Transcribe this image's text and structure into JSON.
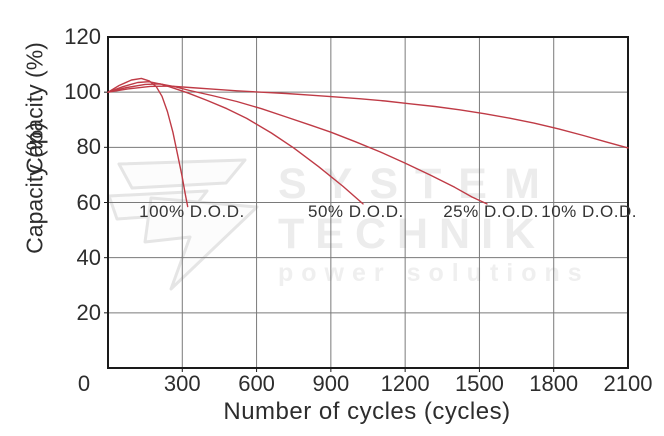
{
  "watermark": {
    "logo": "lightning-bolt",
    "line1": "SYSTEM",
    "line2": "TECHNIK",
    "line3": "power solutions",
    "color": "#ececec"
  },
  "chart_data": {
    "type": "line",
    "title": "",
    "xlabel": "Number of cycles (cycles)",
    "ylabel": "Capacity (%)",
    "xlim": [
      0,
      2100
    ],
    "ylim": [
      0,
      120
    ],
    "x_ticks": [
      0,
      300,
      600,
      900,
      1200,
      1500,
      1800,
      2100
    ],
    "y_ticks": [
      20,
      40,
      60,
      80,
      100,
      120
    ],
    "grid": true,
    "legend_position": "inline-annotations",
    "line_color": "#bf3b46",
    "grid_color": "#7a7a7a",
    "axis_color": "#1a1a1a",
    "series": [
      {
        "name": "100% D.O.D.",
        "label_x": 339,
        "label_y": 56.5,
        "points": [
          [
            0,
            100
          ],
          [
            45,
            102.4
          ],
          [
            95,
            104.4
          ],
          [
            135,
            105
          ],
          [
            168,
            104
          ],
          [
            195,
            102
          ],
          [
            218,
            98.5
          ],
          [
            240,
            93
          ],
          [
            262,
            85.5
          ],
          [
            282,
            77
          ],
          [
            298,
            70
          ],
          [
            312,
            63
          ],
          [
            322,
            58.5
          ]
        ]
      },
      {
        "name": "50% D.O.D.",
        "label_x": 1001,
        "label_y": 56.5,
        "points": [
          [
            0,
            100
          ],
          [
            60,
            102
          ],
          [
            120,
            103.5
          ],
          [
            165,
            103.8
          ],
          [
            220,
            102.8
          ],
          [
            270,
            101.3
          ],
          [
            320,
            99.8
          ],
          [
            400,
            97
          ],
          [
            480,
            94
          ],
          [
            560,
            90.5
          ],
          [
            660,
            85.2
          ],
          [
            750,
            79.8
          ],
          [
            850,
            73
          ],
          [
            950,
            65.8
          ],
          [
            1030,
            59.5
          ]
        ]
      },
      {
        "name": "25% D.O.D.",
        "label_x": 1547,
        "label_y": 56.5,
        "points": [
          [
            0,
            100
          ],
          [
            70,
            101.6
          ],
          [
            150,
            102.8
          ],
          [
            210,
            103
          ],
          [
            270,
            102
          ],
          [
            330,
            100.6
          ],
          [
            420,
            98.8
          ],
          [
            520,
            96.6
          ],
          [
            620,
            94
          ],
          [
            720,
            91
          ],
          [
            820,
            88
          ],
          [
            900,
            85.5
          ],
          [
            1000,
            82
          ],
          [
            1100,
            78.3
          ],
          [
            1200,
            74.3
          ],
          [
            1300,
            70
          ],
          [
            1400,
            65.5
          ],
          [
            1470,
            62
          ],
          [
            1530,
            59.5
          ]
        ]
      },
      {
        "name": "10% D.O.D.",
        "label_x": 1943,
        "label_y": 56.5,
        "points": [
          [
            0,
            100
          ],
          [
            80,
            101.2
          ],
          [
            170,
            102.1
          ],
          [
            250,
            102.2
          ],
          [
            330,
            101.7
          ],
          [
            420,
            101.1
          ],
          [
            520,
            100.5
          ],
          [
            620,
            100
          ],
          [
            720,
            99.5
          ],
          [
            820,
            98.9
          ],
          [
            920,
            98.3
          ],
          [
            1020,
            97.6
          ],
          [
            1120,
            96.8
          ],
          [
            1220,
            95.8
          ],
          [
            1320,
            94.8
          ],
          [
            1420,
            93.6
          ],
          [
            1520,
            92.2
          ],
          [
            1620,
            90.6
          ],
          [
            1720,
            88.8
          ],
          [
            1820,
            86.7
          ],
          [
            1920,
            84.3
          ],
          [
            2010,
            82
          ],
          [
            2100,
            79.8
          ]
        ]
      }
    ]
  }
}
